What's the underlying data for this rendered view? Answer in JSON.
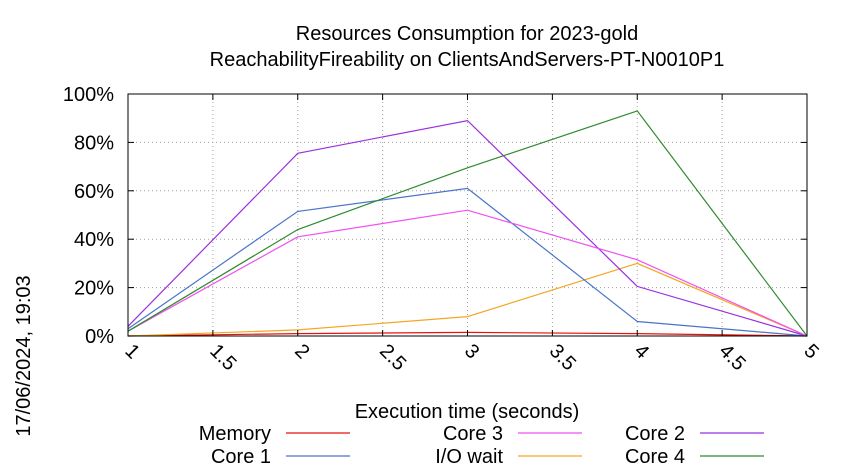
{
  "chart_data": {
    "type": "line",
    "title": "Resources Consumption for 2023-gold",
    "subtitle": "ReachabilityFireability on ClientsAndServers-PT-N0010P1",
    "xlabel": "Execution time (seconds)",
    "ylabel": "",
    "timestamp": "17/06/2024, 19:03",
    "xlim": [
      1,
      5
    ],
    "ylim": [
      0,
      100
    ],
    "x_ticks": [
      "1",
      "1.5",
      "2",
      "2.5",
      "3",
      "3.5",
      "4",
      "4.5",
      "5"
    ],
    "x_tick_values": [
      1,
      1.5,
      2,
      2.5,
      3,
      3.5,
      4,
      4.5,
      5
    ],
    "y_ticks": [
      "0%",
      "20%",
      "40%",
      "60%",
      "80%",
      "100%"
    ],
    "y_tick_values": [
      0,
      20,
      40,
      60,
      80,
      100
    ],
    "grid": true,
    "legend_position": "bottom",
    "x": [
      1,
      2,
      3,
      4,
      5
    ],
    "series": [
      {
        "name": "Memory",
        "color": "#e8130f",
        "values": [
          0,
          1,
          1.5,
          1,
          0
        ]
      },
      {
        "name": "I/O wait",
        "color": "#f5a623",
        "values": [
          0,
          2.5,
          8,
          30,
          0
        ]
      },
      {
        "name": "Core 1",
        "color": "#4a74c9",
        "values": [
          3,
          51.5,
          61,
          6,
          0
        ]
      },
      {
        "name": "Core 2",
        "color": "#9b30e0",
        "values": [
          4,
          75.5,
          89,
          20.5,
          0
        ]
      },
      {
        "name": "Core 3",
        "color": "#f050f0",
        "values": [
          2,
          41,
          52,
          31.5,
          0
        ]
      },
      {
        "name": "Core 4",
        "color": "#2e8b2e",
        "values": [
          2,
          44,
          69.5,
          93,
          0
        ]
      }
    ],
    "legend_order": [
      0,
      2,
      4,
      1,
      3,
      5
    ]
  }
}
